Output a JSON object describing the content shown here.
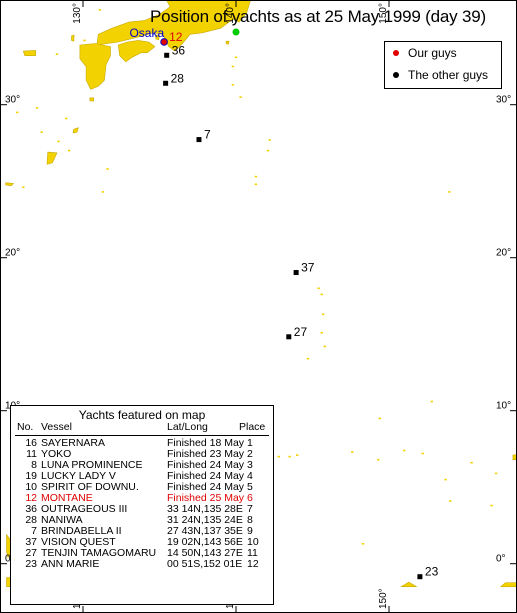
{
  "title": "Position of yachts as at 25 May 1999 (day 39)",
  "legend": {
    "ours": {
      "label": "Our guys",
      "color": "#e00000"
    },
    "others": {
      "label": "The other guys",
      "color": "#000000"
    }
  },
  "map": {
    "extent": {
      "lon": [
        125,
        160
      ],
      "lat": [
        -1.5,
        40
      ]
    },
    "land_color": "#f2d200",
    "grid_color": "#000000",
    "lat_labels": [
      {
        "lat": 30,
        "text": "30°"
      },
      {
        "lat": 20,
        "text": "20°"
      },
      {
        "lat": 10,
        "text": "10°"
      },
      {
        "lat": 0,
        "text": "0°"
      }
    ],
    "lon_labels": [
      {
        "lon": 130,
        "text": "130°"
      },
      {
        "lon": 140,
        "text": "140°"
      },
      {
        "lon": 150,
        "text": "150°"
      },
      {
        "lon": 160,
        "text": "160°"
      }
    ],
    "places": [
      {
        "name": "Osaka",
        "lat": 34.67,
        "lon": 135.5,
        "color": "#0000cc"
      },
      {
        "name": "eoul",
        "lat": 37.55,
        "lon": 126.98,
        "color": "#000000"
      }
    ],
    "finish_marker": {
      "lat": 34.75,
      "lon": 140.0,
      "color": "#00cc00"
    },
    "yachts": [
      {
        "no": "12",
        "lat": 34.1,
        "lon": 135.3,
        "ours": true
      },
      {
        "no": "36",
        "lat": 33.23,
        "lon": 135.47
      },
      {
        "no": "28",
        "lat": 31.4,
        "lon": 135.4
      },
      {
        "no": "7",
        "lat": 27.72,
        "lon": 137.58
      },
      {
        "no": "37",
        "lat": 19.03,
        "lon": 143.93
      },
      {
        "no": "27",
        "lat": 14.83,
        "lon": 143.45
      },
      {
        "no": "23",
        "lat": -0.85,
        "lon": 152.02
      }
    ]
  },
  "table": {
    "title": "Yachts featured on map",
    "headers": {
      "no": "No.",
      "vessel": "Vessel",
      "latlong": "Lat/Long",
      "place": "Place"
    },
    "rows": [
      {
        "no": "16",
        "vessel": "SAYERNARA",
        "latlong": "Finished 18 May",
        "place": "1"
      },
      {
        "no": "11",
        "vessel": "YOKO",
        "latlong": "Finished 23 May",
        "place": "2"
      },
      {
        "no": "8",
        "vessel": "LUNA PROMINENCE",
        "latlong": "Finished 24 May",
        "place": "3"
      },
      {
        "no": "19",
        "vessel": "LUCKY LADY V",
        "latlong": "Finished 24 May",
        "place": "4"
      },
      {
        "no": "10",
        "vessel": "SPIRIT OF DOWNU.",
        "latlong": "Finished 24 May",
        "place": "5"
      },
      {
        "no": "12",
        "vessel": "MONTANE",
        "latlong": "Finished 25 May",
        "place": "6",
        "ours": true
      },
      {
        "no": "36",
        "vessel": "OUTRAGEOUS III",
        "latlong": "33 14N,135 28E",
        "place": "7"
      },
      {
        "no": "28",
        "vessel": "NANIWA",
        "latlong": "31 24N,135 24E",
        "place": "8"
      },
      {
        "no": "7",
        "vessel": "BRINDABELLA II",
        "latlong": "27 43N,137 35E",
        "place": "9"
      },
      {
        "no": "37",
        "vessel": "VISION QUEST",
        "latlong": "19 02N,143 56E",
        "place": "10"
      },
      {
        "no": "27",
        "vessel": "TENJIN TAMAGOMARU",
        "latlong": "14 50N,143 27E",
        "place": "11"
      },
      {
        "no": "23",
        "vessel": "ANN MARIE",
        "latlong": "00 51S,152 01E",
        "place": "12"
      }
    ]
  }
}
